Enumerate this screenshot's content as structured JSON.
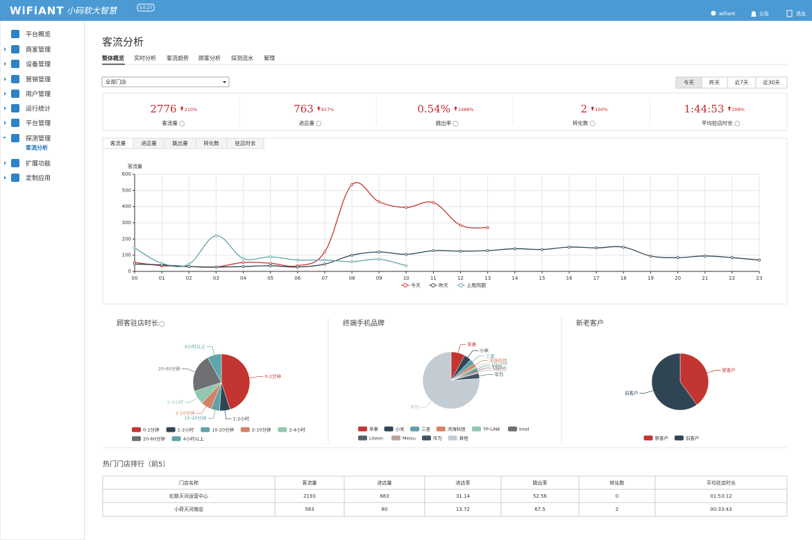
{
  "header": {
    "brand": "WiFiANT",
    "slogan": "小码软大智慧",
    "version": "3.0.27",
    "user": "wifiant",
    "notice": "公告",
    "logout": "退出"
  },
  "sidebar": {
    "items": [
      "平台概览",
      "商家管理",
      "设备管理",
      "营销管理",
      "用户管理",
      "运行统计",
      "平台管理",
      "探测管理",
      "扩展功能",
      "定制应用"
    ],
    "active_sub": "客流分析"
  },
  "page": {
    "title": "客流分析",
    "tabs": [
      "整体概览",
      "实时分析",
      "客流趋势",
      "顾客分析",
      "探测流水",
      "管理"
    ],
    "store_select": "全部门店",
    "ranges": [
      "今天",
      "昨天",
      "近7天",
      "近30天"
    ]
  },
  "kpis": [
    {
      "value": "2776",
      "change": "210%",
      "label": "客流量"
    },
    {
      "value": "763",
      "change": "917%",
      "label": "进店量"
    },
    {
      "value": "0.54%",
      "change": "1488%",
      "label": "跳出率"
    },
    {
      "value": "2",
      "change": "100%",
      "label": "转化数"
    },
    {
      "value": "1:44:53",
      "change": "208%",
      "label": "平均驻店时长"
    }
  ],
  "chart_tabs": [
    "客流量",
    "进店量",
    "跳出量",
    "转化数",
    "驻店时长"
  ],
  "chart_data": [
    {
      "type": "line",
      "ylabel": "客流量",
      "categories": [
        "00",
        "01",
        "02",
        "03",
        "04",
        "05",
        "06",
        "07",
        "08",
        "09",
        "10",
        "11",
        "12",
        "13",
        "14",
        "15",
        "16",
        "17",
        "18",
        "19",
        "20",
        "21",
        "22",
        "23"
      ],
      "ylim": [
        0,
        600
      ],
      "yticks": [
        0,
        100,
        200,
        300,
        400,
        500,
        600
      ],
      "grid": true,
      "series": [
        {
          "name": "今天",
          "color": "#c23531",
          "values": [
            55,
            35,
            30,
            27,
            55,
            50,
            35,
            120,
            535,
            430,
            395,
            425,
            285,
            270,
            null,
            null,
            null,
            null,
            null,
            null,
            null,
            null,
            null,
            null
          ]
        },
        {
          "name": "昨天",
          "color": "#2f4554",
          "values": [
            45,
            40,
            30,
            27,
            30,
            35,
            27,
            45,
            100,
            120,
            105,
            128,
            125,
            128,
            140,
            135,
            150,
            145,
            150,
            95,
            85,
            95,
            85,
            70
          ]
        },
        {
          "name": "上周同期",
          "color": "#61a0a8",
          "values": [
            145,
            50,
            45,
            220,
            80,
            90,
            70,
            70,
            60,
            75,
            35,
            null,
            null,
            null,
            null,
            null,
            null,
            null,
            null,
            null,
            null,
            null,
            null,
            null
          ]
        }
      ]
    },
    {
      "type": "pie",
      "title": "顾客驻店时长",
      "categories": [
        "0-2分钟",
        "1-2小时",
        "10-20分钟",
        "2-10分钟",
        "2-4小时",
        "20-60分钟",
        "4小时以上"
      ],
      "values": [
        45,
        6,
        5,
        6,
        8,
        22,
        8
      ],
      "colors": [
        "#c23531",
        "#2f4554",
        "#61a0a8",
        "#d48265",
        "#91c7ae",
        "#6e7074",
        "#5fa5ad"
      ]
    },
    {
      "type": "pie",
      "title": "终端手机品牌",
      "categories": [
        "苹果",
        "小米",
        "三星",
        "鸿海科技",
        "TP-LINK",
        "Intel",
        "Liteon",
        "Meizu",
        "华为",
        "其他"
      ],
      "values": [
        8,
        4,
        3,
        2,
        1,
        1,
        1,
        1,
        3,
        76
      ],
      "colors": [
        "#c23531",
        "#2f4554",
        "#61a0a8",
        "#d48265",
        "#91c7ae",
        "#6e7074",
        "#546570",
        "#bda29a",
        "#3f5566",
        "#c4ccd3"
      ]
    },
    {
      "type": "pie",
      "title": "新老客户",
      "categories": [
        "新客户",
        "旧客户"
      ],
      "values": [
        40,
        60
      ],
      "colors": [
        "#c23531",
        "#2f4554"
      ]
    }
  ],
  "table": {
    "title": "热门门店排行（前5）",
    "headers": [
      "门店名称",
      "客流量",
      "进店量",
      "进店率",
      "跳出率",
      "转化数",
      "平均驻店时长"
    ],
    "rows": [
      [
        "虹联天河运营中心",
        "2193",
        "683",
        "31.14",
        "52.56",
        "0",
        "01:53:12"
      ],
      [
        "小荷天河南店",
        "583",
        "80",
        "13.72",
        "67.5",
        "2",
        "00:33:43"
      ]
    ]
  }
}
